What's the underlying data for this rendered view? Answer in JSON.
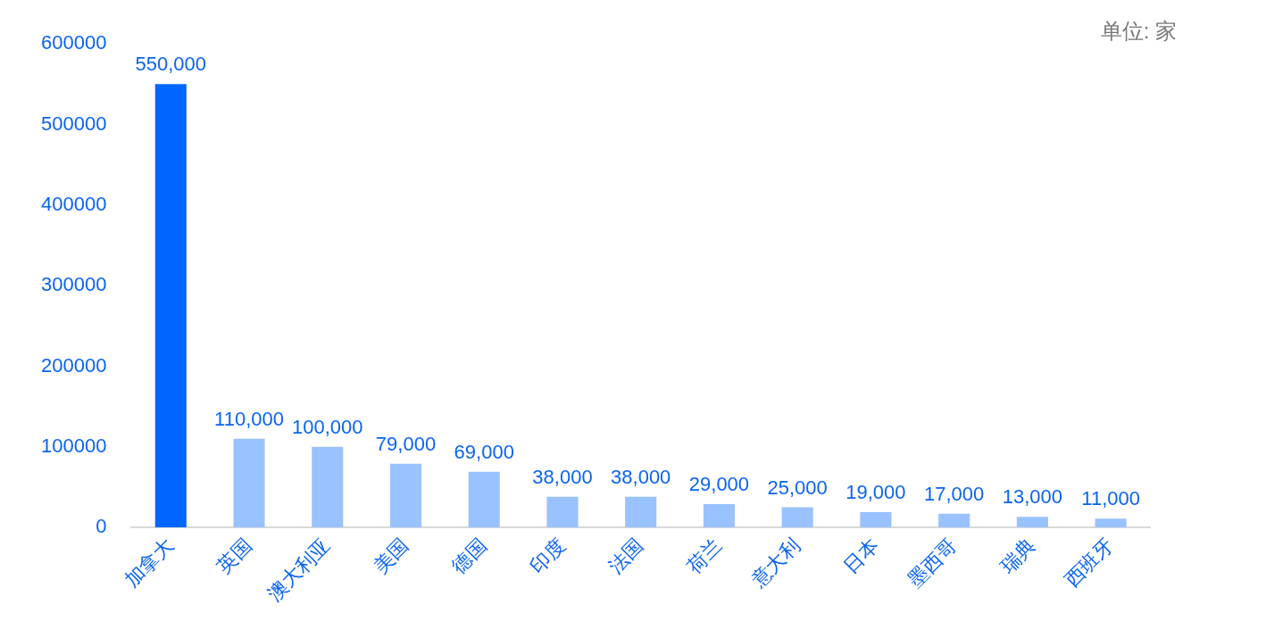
{
  "chart_data": {
    "type": "bar",
    "categories": [
      "加拿大",
      "英国",
      "澳大利亚",
      "美国",
      "德国",
      "印度",
      "法国",
      "荷兰",
      "意大利",
      "日本",
      "墨西哥",
      "瑞典",
      "西班牙"
    ],
    "values": [
      550000,
      110000,
      100000,
      79000,
      69000,
      38000,
      38000,
      29000,
      25000,
      19000,
      17000,
      13000,
      11000
    ],
    "colors": [
      "#0066ff",
      "#99c2ff",
      "#99c2ff",
      "#99c2ff",
      "#99c2ff",
      "#99c2ff",
      "#99c2ff",
      "#99c2ff",
      "#99c2ff",
      "#99c2ff",
      "#99c2ff",
      "#99c2ff",
      "#99c2ff"
    ],
    "value_labels": [
      "550,000",
      "110,000",
      "100,000",
      "79,000",
      "69,000",
      "38,000",
      "38,000",
      "29,000",
      "25,000",
      "19,000",
      "17,000",
      "13,000",
      "11,000"
    ],
    "ylim": [
      0,
      600000
    ],
    "yticks": [
      0,
      100000,
      200000,
      300000,
      400000,
      500000,
      600000
    ],
    "grid": false,
    "legend": false,
    "annotations": [
      "单位: 家"
    ]
  }
}
